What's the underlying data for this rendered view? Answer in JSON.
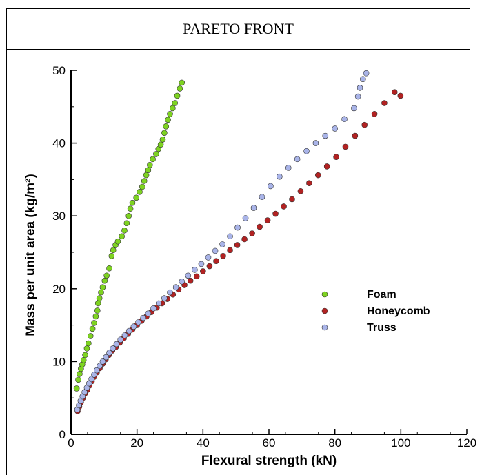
{
  "page": {
    "title": "PARETO FRONT"
  },
  "chart_data": {
    "type": "scatter",
    "title": "PARETO FRONT",
    "xlabel": "Flexural strength (kN)",
    "ylabel": "Mass per unit area (kg/m²)",
    "xlim": [
      0,
      120
    ],
    "ylim": [
      0,
      50
    ],
    "xticks": [
      "0",
      "20",
      "40",
      "60",
      "80",
      "100",
      "120"
    ],
    "yticks": [
      "0",
      "10",
      "20",
      "30",
      "40",
      "50"
    ],
    "xtick_values": [
      0,
      20,
      40,
      60,
      80,
      100,
      120
    ],
    "ytick_values": [
      0,
      10,
      20,
      30,
      40,
      50
    ],
    "grid": false,
    "legend_position": "center-right",
    "series": [
      {
        "name": "Foam",
        "color": "#7ed321",
        "points": [
          [
            1.7,
            6.3
          ],
          [
            2.2,
            7.5
          ],
          [
            2.6,
            8.3
          ],
          [
            3.0,
            9.0
          ],
          [
            3.4,
            9.6
          ],
          [
            3.8,
            10.2
          ],
          [
            4.3,
            10.9
          ],
          [
            4.8,
            11.8
          ],
          [
            5.3,
            12.5
          ],
          [
            5.9,
            13.5
          ],
          [
            6.5,
            14.5
          ],
          [
            7.0,
            15.3
          ],
          [
            7.5,
            16.2
          ],
          [
            8.0,
            17.0
          ],
          [
            8.2,
            18.0
          ],
          [
            8.6,
            18.7
          ],
          [
            9.1,
            19.5
          ],
          [
            9.6,
            20.2
          ],
          [
            10.2,
            21.1
          ],
          [
            10.8,
            21.8
          ],
          [
            11.6,
            22.8
          ],
          [
            12.3,
            24.5
          ],
          [
            12.8,
            25.3
          ],
          [
            13.5,
            26.0
          ],
          [
            14.2,
            26.5
          ],
          [
            15.4,
            27.2
          ],
          [
            16.2,
            28.0
          ],
          [
            16.9,
            29.0
          ],
          [
            17.5,
            30.0
          ],
          [
            18.0,
            31.0
          ],
          [
            18.6,
            31.8
          ],
          [
            19.8,
            32.5
          ],
          [
            20.8,
            33.3
          ],
          [
            21.6,
            34.0
          ],
          [
            22.2,
            34.8
          ],
          [
            22.8,
            35.6
          ],
          [
            23.4,
            36.3
          ],
          [
            23.9,
            37.0
          ],
          [
            24.8,
            37.8
          ],
          [
            25.8,
            38.5
          ],
          [
            26.5,
            39.2
          ],
          [
            27.2,
            39.8
          ],
          [
            27.8,
            40.5
          ],
          [
            28.3,
            41.4
          ],
          [
            28.8,
            42.3
          ],
          [
            29.4,
            43.2
          ],
          [
            30.0,
            44.0
          ],
          [
            30.8,
            44.8
          ],
          [
            31.5,
            45.5
          ],
          [
            32.2,
            46.5
          ],
          [
            33.0,
            47.5
          ],
          [
            33.6,
            48.3
          ]
        ]
      },
      {
        "name": "Honeycomb",
        "color": "#b22222",
        "points": [
          [
            2.0,
            3.2
          ],
          [
            2.5,
            3.8
          ],
          [
            3.0,
            4.4
          ],
          [
            3.6,
            5.0
          ],
          [
            4.2,
            5.6
          ],
          [
            4.9,
            6.1
          ],
          [
            5.6,
            6.7
          ],
          [
            6.3,
            7.3
          ],
          [
            7.0,
            7.9
          ],
          [
            7.8,
            8.5
          ],
          [
            8.7,
            9.1
          ],
          [
            9.6,
            9.7
          ],
          [
            10.5,
            10.3
          ],
          [
            11.5,
            10.9
          ],
          [
            12.5,
            11.5
          ],
          [
            13.6,
            12.0
          ],
          [
            14.8,
            12.6
          ],
          [
            16.0,
            13.2
          ],
          [
            17.3,
            13.8
          ],
          [
            18.6,
            14.4
          ],
          [
            20.0,
            15.0
          ],
          [
            21.4,
            15.6
          ],
          [
            22.9,
            16.2
          ],
          [
            24.4,
            16.8
          ],
          [
            26.0,
            17.4
          ],
          [
            27.6,
            18.0
          ],
          [
            29.2,
            18.6
          ],
          [
            30.9,
            19.2
          ],
          [
            32.6,
            19.9
          ],
          [
            34.4,
            20.5
          ],
          [
            36.2,
            21.1
          ],
          [
            38.1,
            21.7
          ],
          [
            40.0,
            22.4
          ],
          [
            42.0,
            23.1
          ],
          [
            44.0,
            23.8
          ],
          [
            46.1,
            24.5
          ],
          [
            48.2,
            25.3
          ],
          [
            50.4,
            26.0
          ],
          [
            52.6,
            26.8
          ],
          [
            54.9,
            27.6
          ],
          [
            57.2,
            28.5
          ],
          [
            59.6,
            29.4
          ],
          [
            62.0,
            30.3
          ],
          [
            64.5,
            31.3
          ],
          [
            67.0,
            32.3
          ],
          [
            69.6,
            33.4
          ],
          [
            72.2,
            34.5
          ],
          [
            74.9,
            35.6
          ],
          [
            77.6,
            36.8
          ],
          [
            80.4,
            38.1
          ],
          [
            83.2,
            39.5
          ],
          [
            86.1,
            41.0
          ],
          [
            89.0,
            42.5
          ],
          [
            92.0,
            44.0
          ],
          [
            95.0,
            45.5
          ],
          [
            98.1,
            47.0
          ],
          [
            99.9,
            46.5
          ]
        ]
      },
      {
        "name": "Truss",
        "color": "#a9b4e8",
        "points": [
          [
            1.9,
            3.4
          ],
          [
            2.4,
            4.0
          ],
          [
            2.9,
            4.6
          ],
          [
            3.5,
            5.2
          ],
          [
            4.1,
            5.8
          ],
          [
            4.8,
            6.4
          ],
          [
            5.5,
            7.0
          ],
          [
            6.2,
            7.6
          ],
          [
            7.0,
            8.2
          ],
          [
            7.8,
            8.8
          ],
          [
            8.7,
            9.4
          ],
          [
            9.6,
            10.0
          ],
          [
            10.6,
            10.6
          ],
          [
            11.6,
            11.2
          ],
          [
            12.7,
            11.8
          ],
          [
            13.8,
            12.4
          ],
          [
            15.0,
            13.0
          ],
          [
            16.3,
            13.6
          ],
          [
            17.6,
            14.2
          ],
          [
            19.0,
            14.8
          ],
          [
            20.4,
            15.4
          ],
          [
            21.9,
            16.0
          ],
          [
            23.4,
            16.6
          ],
          [
            25.0,
            17.3
          ],
          [
            26.6,
            18.0
          ],
          [
            28.3,
            18.7
          ],
          [
            30.0,
            19.5
          ],
          [
            31.8,
            20.2
          ],
          [
            33.6,
            21.0
          ],
          [
            35.5,
            21.8
          ],
          [
            37.5,
            22.6
          ],
          [
            39.5,
            23.4
          ],
          [
            41.6,
            24.3
          ],
          [
            43.7,
            25.2
          ],
          [
            45.9,
            26.1
          ],
          [
            48.2,
            27.2
          ],
          [
            50.5,
            28.4
          ],
          [
            52.9,
            29.7
          ],
          [
            55.4,
            31.1
          ],
          [
            57.9,
            32.6
          ],
          [
            60.5,
            34.1
          ],
          [
            63.2,
            35.4
          ],
          [
            65.9,
            36.6
          ],
          [
            68.6,
            37.8
          ],
          [
            71.4,
            38.9
          ],
          [
            74.2,
            40.0
          ],
          [
            77.1,
            41.0
          ],
          [
            80.0,
            42.0
          ],
          [
            82.9,
            43.3
          ],
          [
            85.8,
            44.8
          ],
          [
            87.0,
            46.4
          ],
          [
            87.6,
            47.6
          ],
          [
            88.5,
            48.8
          ],
          [
            89.5,
            49.6
          ]
        ]
      }
    ]
  }
}
